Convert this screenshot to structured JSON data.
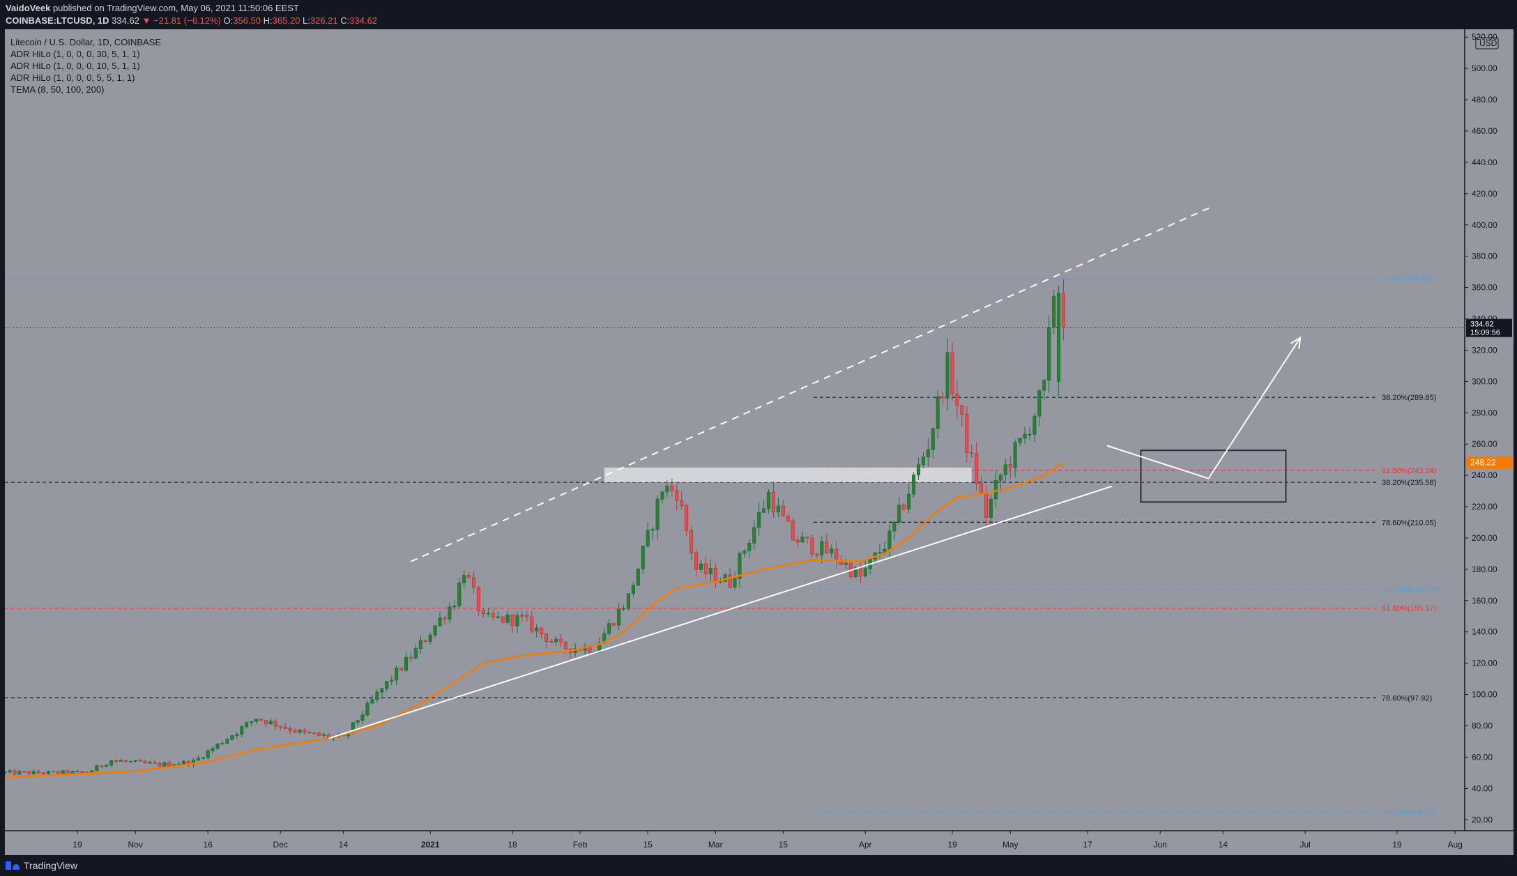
{
  "header": {
    "author": "VaidoVeek",
    "published_text": "published on TradingView.com, May 06, 2021 11:50:06 EEST",
    "symbol": "COINBASE:LTCUSD, 1D",
    "last": "334.62",
    "change": "▼ −21.81 (−6.12%)",
    "o_label": "O:",
    "o": "356.50",
    "h_label": "H:",
    "h": "365.20",
    "l_label": "L:",
    "l": "326.21",
    "c_label": "C:",
    "c": "334.62"
  },
  "legend": {
    "title": "Litecoin / U.S. Dollar, 1D, COINBASE",
    "indicators": [
      "ADR HiLo (1, 0, 0, 0, 30, 5, 1, 1)",
      "ADR HiLo (1, 0, 0, 0, 10, 5, 1, 1)",
      "ADR HiLo (1, 0, 0, 0, 5, 5, 1, 1)",
      "TEMA (8, 50, 100, 200)"
    ]
  },
  "footer": {
    "brand": "TradingView"
  },
  "colors": {
    "plot_bg": "#9598a1",
    "bull": "#26a69a",
    "bear": "#ef5350",
    "bull_dark": "#1e6f3a",
    "bear_dark": "#b33a3a",
    "tema": "#f57c00",
    "price_label": "#131722",
    "tema_label": "#f57c00",
    "fib_red": "#e53935",
    "fib_blue": "#5b9bd5",
    "trend": "#ffffff"
  },
  "chart_data": {
    "type": "candlestick",
    "symbol": "LTCUSD",
    "x_axis_ticks": [
      "19",
      "Nov",
      "16",
      "Dec",
      "14",
      "2021",
      "18",
      "Feb",
      "15",
      "Mar",
      "15",
      "Apr",
      "19",
      "May",
      "17",
      "Jun",
      "14",
      "Jul",
      "19",
      "Aug"
    ],
    "x_axis_tick_days": [
      -12,
      0,
      15,
      30,
      43,
      61,
      78,
      92,
      106,
      120,
      134,
      151,
      169,
      181,
      197,
      212,
      225,
      242,
      261,
      273
    ],
    "y_axis_ticks": [
      20,
      40,
      60,
      80,
      100,
      120,
      140,
      160,
      180,
      200,
      220,
      240,
      260,
      280,
      300,
      320,
      340,
      360,
      380,
      400,
      420,
      440,
      460,
      480,
      500,
      520
    ],
    "ylim": [
      13,
      525
    ],
    "currency": "USD",
    "current_price": "334.62",
    "countdown": "15:09:56",
    "tema_value": "248.22",
    "fib_levels": [
      {
        "label": "0.00%(365.75)",
        "value": 365.75,
        "style": "blue-solid"
      },
      {
        "label": "38.20%(289.85)",
        "value": 289.85,
        "style": "dashed"
      },
      {
        "label": "61.80%(243.24)",
        "value": 243.24,
        "style": "red-dashed"
      },
      {
        "label": "38.20%(235.58)",
        "value": 235.58,
        "style": "dashed"
      },
      {
        "label": "78.60%(210.05)",
        "value": 210.05,
        "style": "dashed"
      },
      {
        "label": "100.00%(167.39)",
        "value": 167.39,
        "style": "blue-dashed"
      },
      {
        "label": "61.80%(155.17)",
        "value": 155.17,
        "style": "red-dashed"
      },
      {
        "label": "78.60%(97.92)",
        "value": 97.92,
        "style": "dashed"
      },
      {
        "label": "100.00%(25.00)",
        "value": 25.0,
        "style": "blue-dashed"
      }
    ],
    "anchors": [
      [
        -27,
        50
      ],
      [
        -10,
        50
      ],
      [
        -5,
        58
      ],
      [
        5,
        55
      ],
      [
        12,
        57
      ],
      [
        25,
        85
      ],
      [
        35,
        75
      ],
      [
        43,
        72
      ],
      [
        50,
        100
      ],
      [
        58,
        128
      ],
      [
        66,
        160
      ],
      [
        68,
        180
      ],
      [
        72,
        148
      ],
      [
        80,
        148
      ],
      [
        88,
        130
      ],
      [
        95,
        130
      ],
      [
        102,
        162
      ],
      [
        106,
        200
      ],
      [
        109,
        232
      ],
      [
        112,
        230
      ],
      [
        116,
        180
      ],
      [
        123,
        172
      ],
      [
        131,
        228
      ],
      [
        136,
        200
      ],
      [
        144,
        190
      ],
      [
        150,
        175
      ],
      [
        156,
        200
      ],
      [
        160,
        230
      ],
      [
        164,
        260
      ],
      [
        168,
        310
      ],
      [
        172,
        260
      ],
      [
        176,
        215
      ],
      [
        179,
        240
      ],
      [
        184,
        265
      ],
      [
        188,
        295
      ],
      [
        190,
        358
      ],
      [
        192,
        334.62
      ]
    ],
    "tema_path": [
      [
        -27,
        47
      ],
      [
        0,
        51
      ],
      [
        10,
        55
      ],
      [
        15,
        57
      ],
      [
        25,
        65
      ],
      [
        40,
        72
      ],
      [
        50,
        80
      ],
      [
        60,
        96
      ],
      [
        72,
        120
      ],
      [
        80,
        125
      ],
      [
        90,
        128
      ],
      [
        96,
        132
      ],
      [
        100,
        138
      ],
      [
        104,
        148
      ],
      [
        108,
        160
      ],
      [
        112,
        168
      ],
      [
        120,
        172
      ],
      [
        130,
        180
      ],
      [
        140,
        186
      ],
      [
        150,
        185
      ],
      [
        155,
        190
      ],
      [
        160,
        200
      ],
      [
        165,
        215
      ],
      [
        170,
        226
      ],
      [
        175,
        228
      ],
      [
        182,
        233
      ],
      [
        188,
        240
      ],
      [
        192,
        248
      ]
    ],
    "trendlines": [
      {
        "from": [
          40,
          72
        ],
        "to": [
          202,
          233
        ]
      },
      {
        "from": [
          57,
          185
        ],
        "to": [
          223,
          412
        ],
        "dashed": true
      }
    ],
    "zone": {
      "days": [
        97,
        173
      ],
      "values": [
        235.58,
        245
      ]
    },
    "box": {
      "days": [
        208,
        238
      ],
      "values": [
        223,
        256
      ]
    },
    "projection": [
      [
        201,
        259
      ],
      [
        222,
        238
      ],
      [
        241,
        328
      ]
    ],
    "date_span": [
      "2020-10-19",
      "2021-05-06"
    ]
  }
}
